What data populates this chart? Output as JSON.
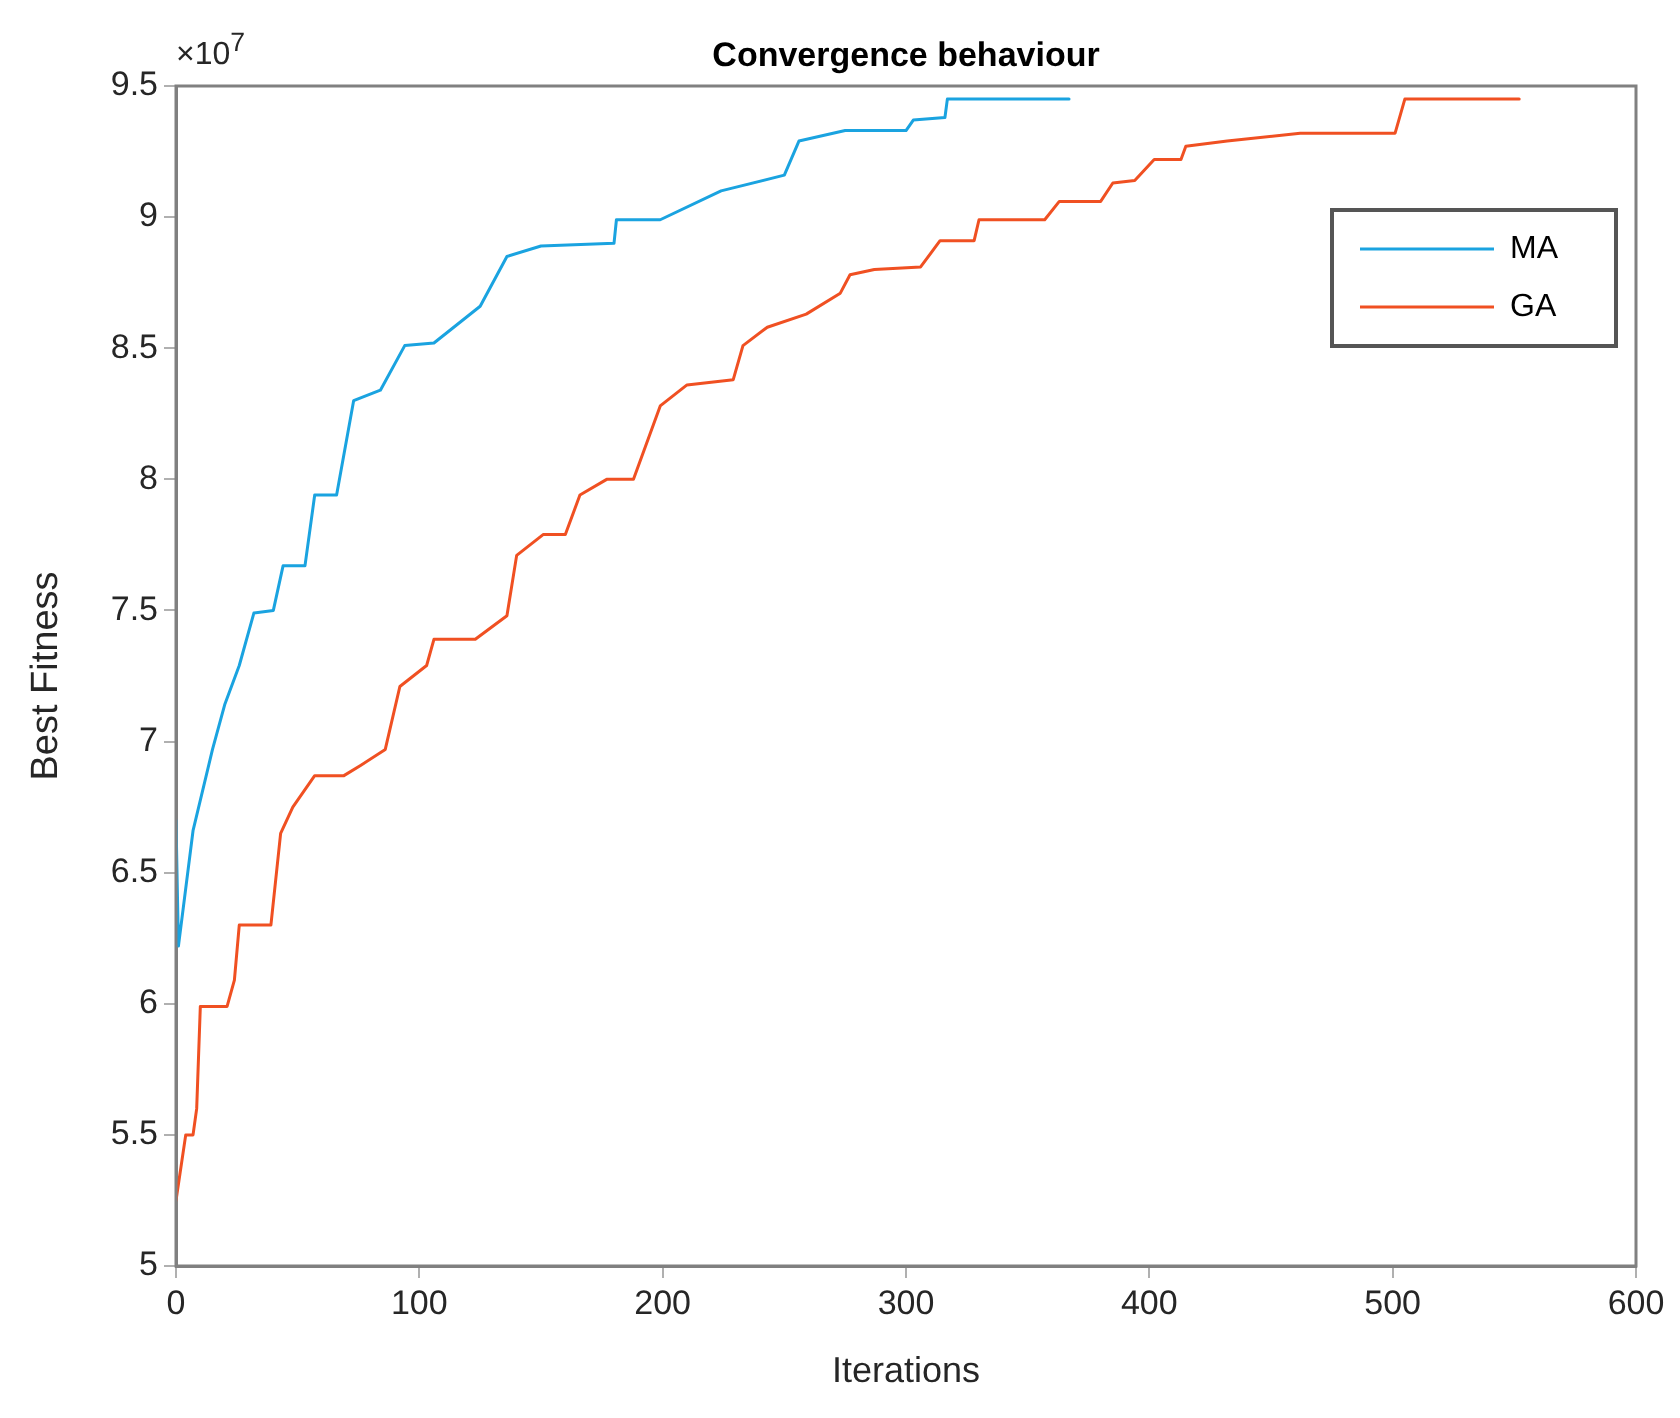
{
  "chart_data": {
    "type": "line",
    "title": "Convergence behaviour",
    "xlabel": "Iterations",
    "ylabel": "Best Fitness",
    "annotations": [
      "×10$^{7}$"
    ],
    "xlim": [
      0,
      600
    ],
    "xticks": [
      0,
      100,
      200,
      300,
      400,
      500,
      600
    ],
    "ylim": [
      5,
      9.5
    ],
    "yticks": [
      5,
      5.5,
      6,
      6.5,
      7,
      7.5,
      8,
      8.5,
      9,
      9.5
    ],
    "grid": false,
    "legend": "top right",
    "line_style": "solid",
    "marker": "none",
    "series": [
      {
        "name": "MA",
        "color": "#1aa3e0",
        "x": [
          0,
          1,
          7,
          15,
          20,
          26,
          32,
          40,
          44,
          53,
          57,
          66,
          73,
          84,
          94,
          106,
          125,
          136,
          150,
          180,
          181,
          199,
          224,
          250,
          256,
          275,
          300,
          303,
          316,
          317,
          367
        ],
        "values": [
          6.7,
          6.22,
          6.66,
          6.97,
          7.14,
          7.29,
          7.49,
          7.5,
          7.67,
          7.67,
          7.94,
          7.94,
          8.3,
          8.34,
          8.51,
          8.52,
          8.66,
          8.85,
          8.89,
          8.9,
          8.99,
          8.99,
          9.1,
          9.16,
          9.29,
          9.33,
          9.33,
          9.37,
          9.38,
          9.45,
          9.45
        ]
      },
      {
        "name": "GA",
        "color": "#f05022",
        "x": [
          0,
          4,
          7,
          8.5,
          10,
          21,
          24,
          26,
          39,
          43,
          48,
          57,
          69,
          76,
          86,
          92,
          103,
          106,
          123,
          136,
          140,
          151,
          160,
          166,
          177,
          188,
          199,
          210,
          229,
          233,
          243,
          259,
          273,
          277,
          287,
          306,
          314,
          328,
          330,
          357,
          363,
          380,
          385,
          394,
          402,
          413,
          415,
          432,
          462,
          501,
          505,
          552
        ],
        "values": [
          5.25,
          5.5,
          5.5,
          5.6,
          5.99,
          5.99,
          6.09,
          6.3,
          6.3,
          6.65,
          6.75,
          6.87,
          6.87,
          6.91,
          6.97,
          7.21,
          7.29,
          7.39,
          7.39,
          7.48,
          7.71,
          7.79,
          7.79,
          7.94,
          8.0,
          8.0,
          8.28,
          8.36,
          8.38,
          8.51,
          8.58,
          8.63,
          8.71,
          8.78,
          8.8,
          8.81,
          8.91,
          8.91,
          8.99,
          8.99,
          9.06,
          9.06,
          9.13,
          9.14,
          9.22,
          9.22,
          9.27,
          9.29,
          9.32,
          9.32,
          9.45,
          9.45
        ]
      }
    ]
  }
}
